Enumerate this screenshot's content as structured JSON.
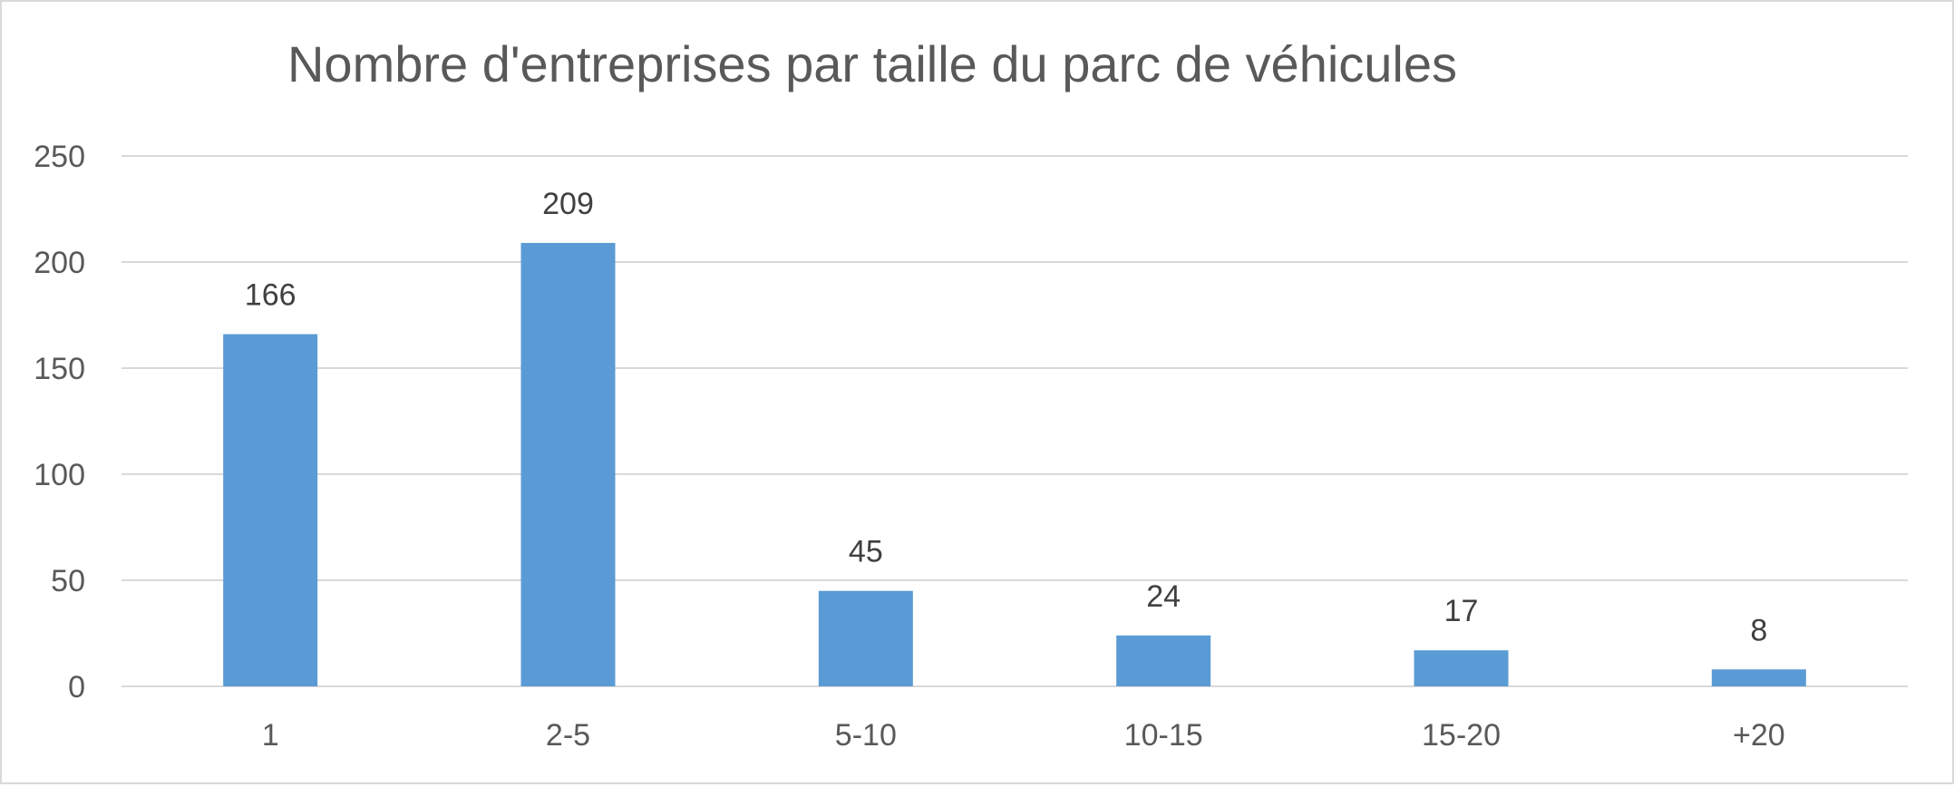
{
  "chart_data": {
    "type": "bar",
    "title": "Nombre d'entreprises par taille du parc de véhicules",
    "xlabel": "",
    "ylabel": "",
    "categories": [
      "1",
      "2-5",
      "5-10",
      "10-15",
      "15-20",
      "+20"
    ],
    "values": [
      166,
      209,
      45,
      24,
      17,
      8
    ],
    "data_labels": [
      "166",
      "209",
      "45",
      "24",
      "17",
      "8"
    ],
    "ylim": [
      0,
      250
    ],
    "yticks": [
      0,
      50,
      100,
      150,
      200,
      250
    ],
    "ytick_labels": [
      "0",
      "50",
      "100",
      "150",
      "200",
      "250"
    ],
    "grid": true,
    "legend": "none",
    "bar_color": "#5b9bd5",
    "grid_color": "#d9d9d9"
  }
}
